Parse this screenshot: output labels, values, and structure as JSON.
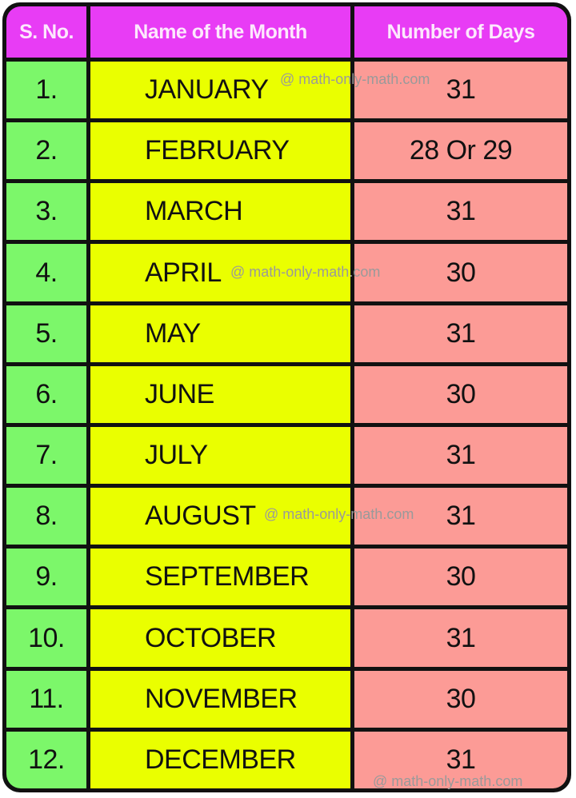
{
  "headers": [
    "S. No.",
    "Name of the Month",
    "Number of Days"
  ],
  "rows": [
    {
      "sno": "1.",
      "month": "JANUARY",
      "days": "31"
    },
    {
      "sno": "2.",
      "month": "FEBRUARY",
      "days": "28 Or 29"
    },
    {
      "sno": "3.",
      "month": "MARCH",
      "days": "31"
    },
    {
      "sno": "4.",
      "month": "APRIL",
      "days": "30"
    },
    {
      "sno": "5.",
      "month": "MAY",
      "days": "31"
    },
    {
      "sno": "6.",
      "month": "JUNE",
      "days": "30"
    },
    {
      "sno": "7.",
      "month": "JULY",
      "days": "31"
    },
    {
      "sno": "8.",
      "month": "AUGUST",
      "days": "31"
    },
    {
      "sno": "9.",
      "month": "SEPTEMBER",
      "days": "30"
    },
    {
      "sno": "10.",
      "month": "OCTOBER",
      "days": "31"
    },
    {
      "sno": "11.",
      "month": "NOVEMBER",
      "days": "30"
    },
    {
      "sno": "12.",
      "month": "DECEMBER",
      "days": "31"
    }
  ],
  "watermark": "@ math-only-math.com",
  "colors": {
    "header": "#e83cf5",
    "sno": "#7cf76a",
    "month": "#eaff00",
    "days": "#fc9b96",
    "border": "#111111"
  }
}
